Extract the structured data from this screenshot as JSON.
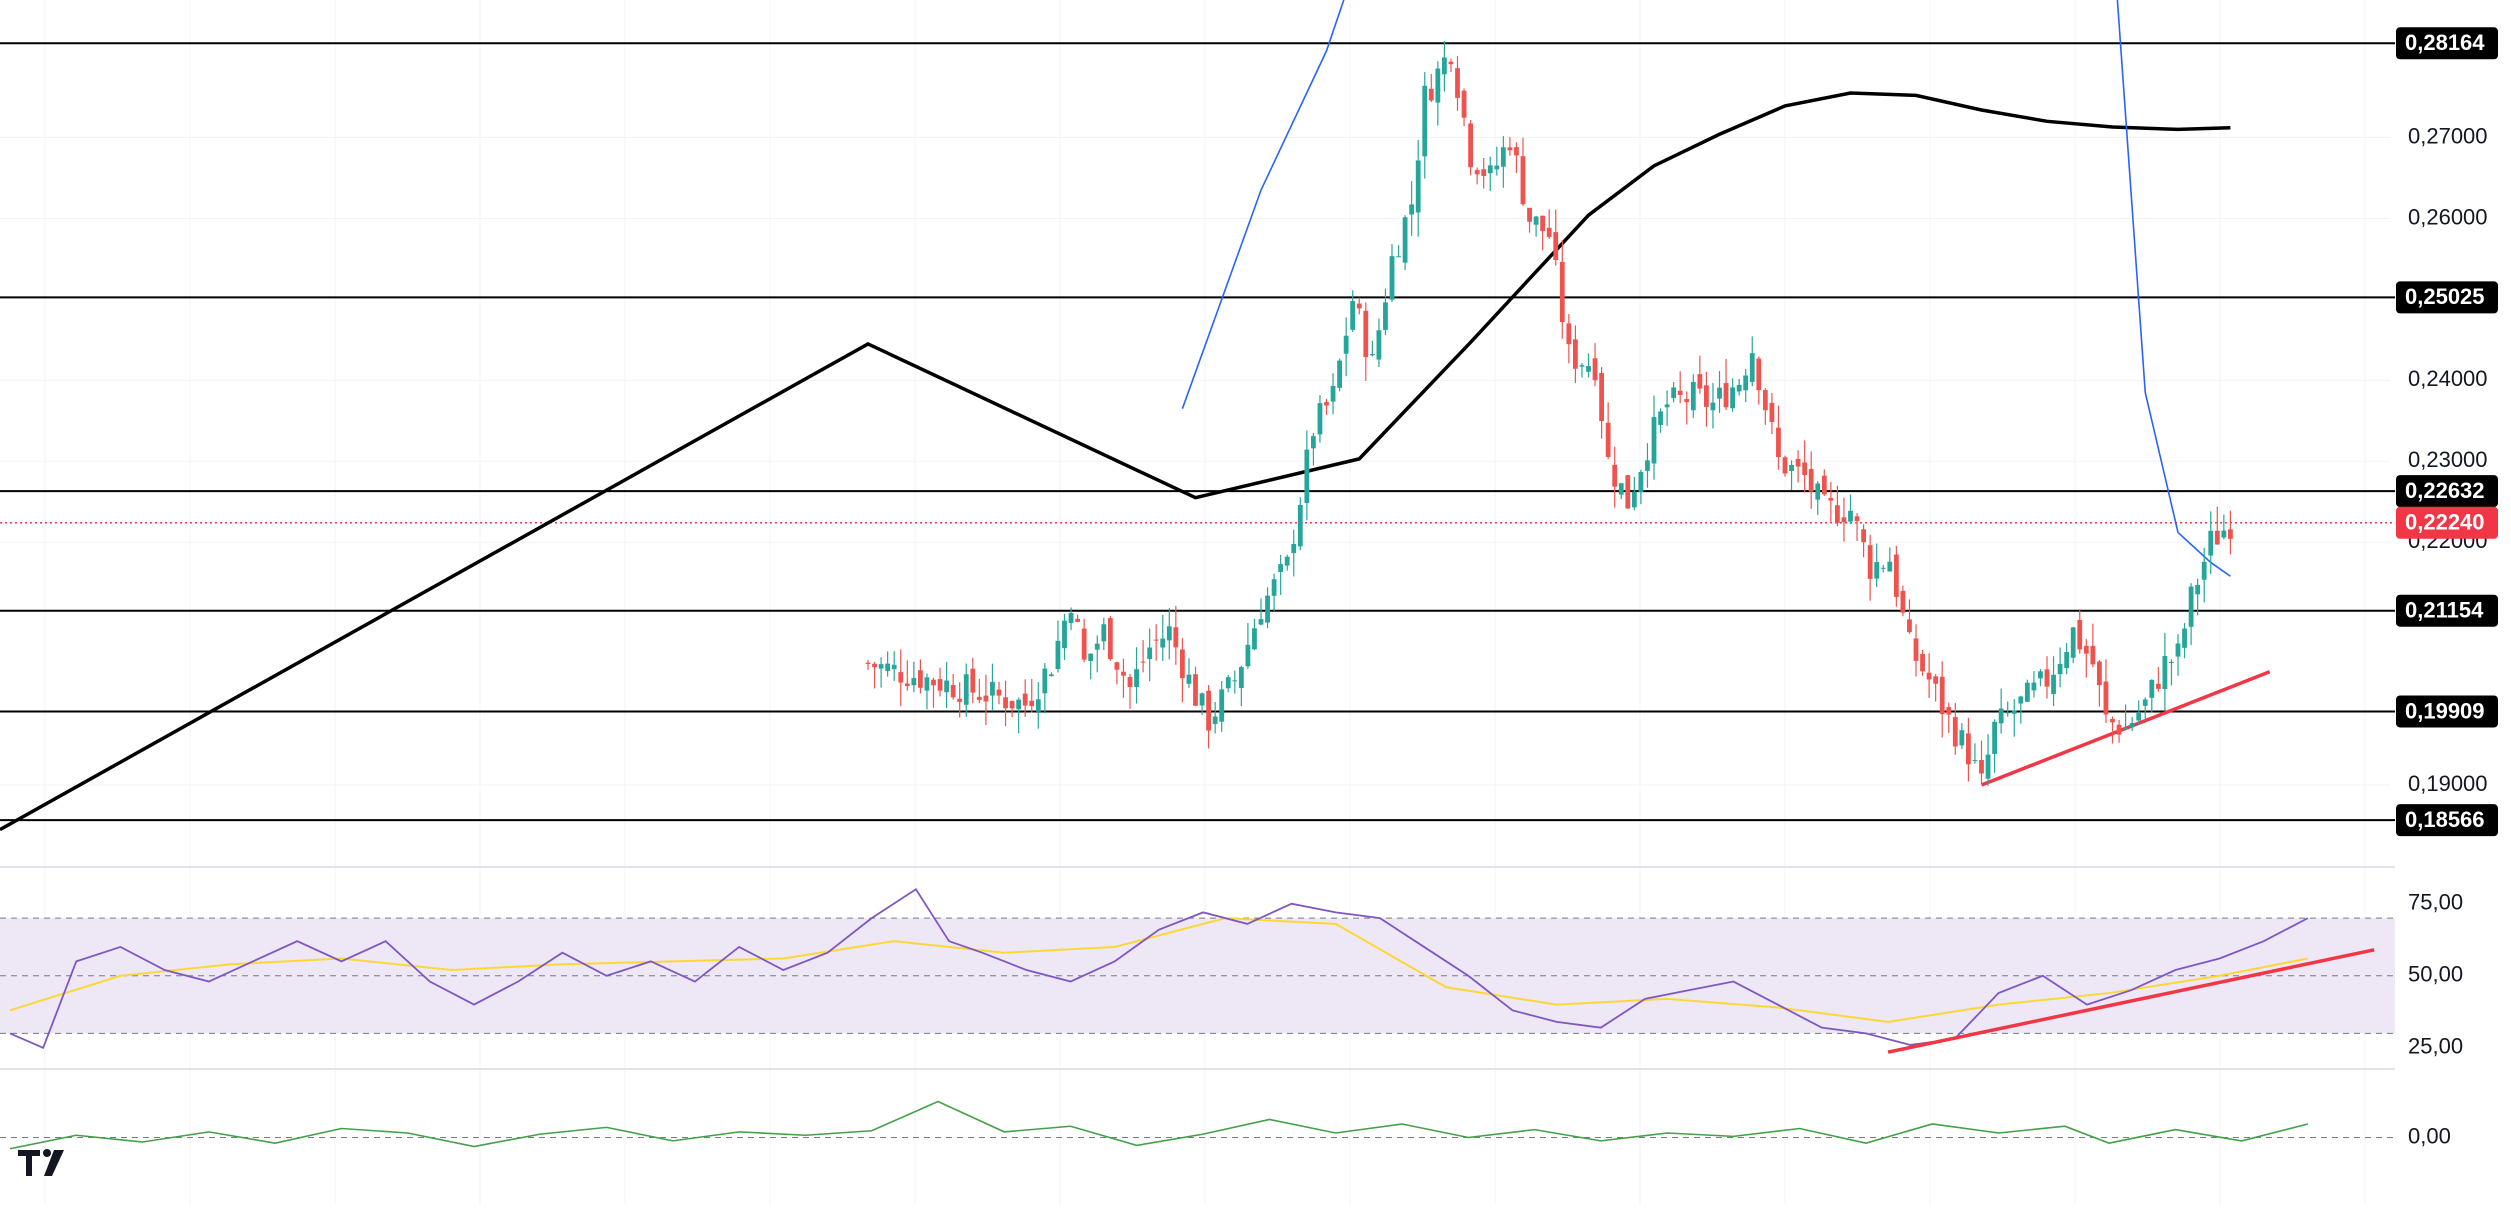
{
  "colors": {
    "up": "#26a69a",
    "down": "#ef5350",
    "level_line": "#000000",
    "sma_fast": "#2962ff",
    "sma_slow": "#000000",
    "current_price": "#f23645",
    "trendline": "#f23645",
    "rsi_line": "#7e57c2",
    "rsi_ma": "#fdd835",
    "rsi_band": "#ede7f6",
    "osc_line": "#43a047",
    "grid": "#f0f3fa",
    "dashed": "#787b86"
  },
  "icons": {
    "logo": "tradingview-logo-icon"
  },
  "chart_data": [
    {
      "type": "candlestick",
      "name": "price",
      "ylim": [
        0.18,
        0.286
      ],
      "y_ticks": [
        {
          "value": 0.19,
          "label": "0,19000"
        },
        {
          "value": 0.22,
          "label": "0,22000"
        },
        {
          "value": 0.23,
          "label": "0,23000"
        },
        {
          "value": 0.24,
          "label": "0,24000"
        },
        {
          "value": 0.26,
          "label": "0,26000"
        },
        {
          "value": 0.27,
          "label": "0,27000"
        }
      ],
      "key_levels": [
        {
          "value": 0.28164,
          "label": "0,28164"
        },
        {
          "value": 0.25025,
          "label": "0,25025"
        },
        {
          "value": 0.22632,
          "label": "0,22632"
        },
        {
          "value": 0.21154,
          "label": "0,21154"
        },
        {
          "value": 0.19909,
          "label": "0,19909"
        },
        {
          "value": 0.18566,
          "label": "0,18566"
        }
      ],
      "current_price": {
        "value": 0.2224,
        "label": "0,22240"
      },
      "close_path": [
        [
          0,
          0.205
        ],
        [
          24,
          0.2
        ],
        [
          28,
          0.205
        ],
        [
          31,
          0.213
        ],
        [
          33,
          0.205
        ],
        [
          36,
          0.209
        ],
        [
          40,
          0.202
        ],
        [
          43,
          0.207
        ],
        [
          46,
          0.209
        ],
        [
          50,
          0.201
        ],
        [
          52,
          0.198
        ],
        [
          56,
          0.203
        ],
        [
          60,
          0.212
        ],
        [
          64,
          0.217
        ],
        [
          68,
          0.234
        ],
        [
          71,
          0.238
        ],
        [
          74,
          0.25
        ],
        [
          77,
          0.242
        ],
        [
          80,
          0.255
        ],
        [
          83,
          0.262
        ],
        [
          85,
          0.275
        ],
        [
          89,
          0.281
        ],
        [
          92,
          0.268
        ],
        [
          95,
          0.265
        ],
        [
          98,
          0.27
        ],
        [
          101,
          0.26
        ],
        [
          104,
          0.258
        ],
        [
          107,
          0.243
        ],
        [
          111,
          0.242
        ],
        [
          113,
          0.23
        ],
        [
          116,
          0.225
        ],
        [
          119,
          0.232
        ],
        [
          122,
          0.237
        ],
        [
          126,
          0.238
        ],
        [
          129,
          0.237
        ],
        [
          133,
          0.24
        ],
        [
          135,
          0.244
        ],
        [
          139,
          0.23
        ],
        [
          143,
          0.228
        ],
        [
          146,
          0.224
        ],
        [
          150,
          0.224
        ],
        [
          153,
          0.217
        ],
        [
          156,
          0.218
        ],
        [
          159,
          0.207
        ],
        [
          162,
          0.203
        ],
        [
          165,
          0.198
        ],
        [
          168,
          0.194
        ],
        [
          170,
          0.19
        ],
        [
          172,
          0.197
        ],
        [
          176,
          0.2
        ],
        [
          180,
          0.203
        ],
        [
          184,
          0.209
        ],
        [
          187,
          0.205
        ],
        [
          189,
          0.198
        ],
        [
          192,
          0.197
        ],
        [
          195,
          0.2
        ],
        [
          198,
          0.205
        ],
        [
          200,
          0.206
        ],
        [
          202,
          0.213
        ],
        [
          205,
          0.22
        ],
        [
          208,
          0.2224
        ]
      ],
      "sma_slow": [
        [
          0,
          0.2445
        ],
        [
          50,
          0.2255
        ],
        [
          75,
          0.2303
        ],
        [
          92,
          0.2447
        ],
        [
          110,
          0.2604
        ],
        [
          120,
          0.2665
        ],
        [
          130,
          0.2704
        ],
        [
          140,
          0.2739
        ],
        [
          150,
          0.2755
        ],
        [
          160,
          0.2752
        ],
        [
          170,
          0.2734
        ],
        [
          180,
          0.272
        ],
        [
          190,
          0.2713
        ],
        [
          200,
          0.271
        ],
        [
          208,
          0.2712
        ]
      ],
      "sma_fast": [
        [
          48,
          0.2365
        ],
        [
          60,
          0.2635
        ],
        [
          70,
          0.2807
        ],
        [
          78,
          0.2998
        ],
        [
          84,
          0.3095
        ],
        [
          90,
          0.3199
        ],
        [
          100,
          0.3355
        ],
        [
          110,
          0.3452
        ],
        [
          120,
          0.3502
        ],
        [
          130,
          0.3522
        ],
        [
          140,
          0.3542
        ],
        [
          150,
          0.3555
        ],
        [
          160,
          0.3565
        ],
        [
          170,
          0.3563
        ],
        [
          180,
          0.3549
        ],
        [
          185,
          0.3502
        ],
        [
          190,
          0.2955
        ],
        [
          195,
          0.2385
        ],
        [
          200,
          0.2212
        ],
        [
          205,
          0.2175
        ],
        [
          208,
          0.2158
        ]
      ],
      "trendline": [
        [
          170,
          0.19
        ],
        [
          214,
          0.204
        ]
      ]
    },
    {
      "type": "line",
      "name": "rsi",
      "ylim": [
        18,
        86
      ],
      "y_ticks": [
        {
          "value": 75,
          "label": "75,00"
        },
        {
          "value": 50,
          "label": "50,00"
        },
        {
          "value": 25,
          "label": "25,00"
        }
      ],
      "band": [
        30,
        70
      ],
      "midline": 50,
      "rsi": [
        [
          0,
          30
        ],
        [
          3,
          25
        ],
        [
          6,
          55
        ],
        [
          10,
          60
        ],
        [
          14,
          52
        ],
        [
          18,
          48
        ],
        [
          22,
          55
        ],
        [
          26,
          62
        ],
        [
          30,
          55
        ],
        [
          34,
          62
        ],
        [
          38,
          48
        ],
        [
          42,
          40
        ],
        [
          46,
          48
        ],
        [
          50,
          58
        ],
        [
          54,
          50
        ],
        [
          58,
          55
        ],
        [
          62,
          48
        ],
        [
          66,
          60
        ],
        [
          70,
          52
        ],
        [
          74,
          58
        ],
        [
          78,
          70
        ],
        [
          82,
          80
        ],
        [
          85,
          62
        ],
        [
          88,
          58
        ],
        [
          92,
          52
        ],
        [
          96,
          48
        ],
        [
          100,
          55
        ],
        [
          104,
          66
        ],
        [
          108,
          72
        ],
        [
          112,
          68
        ],
        [
          116,
          75
        ],
        [
          120,
          72
        ],
        [
          124,
          70
        ],
        [
          128,
          60
        ],
        [
          132,
          50
        ],
        [
          136,
          38
        ],
        [
          140,
          34
        ],
        [
          144,
          32
        ],
        [
          148,
          42
        ],
        [
          152,
          45
        ],
        [
          156,
          48
        ],
        [
          160,
          40
        ],
        [
          164,
          32
        ],
        [
          168,
          30
        ],
        [
          172,
          26
        ],
        [
          176,
          28
        ],
        [
          180,
          44
        ],
        [
          184,
          50
        ],
        [
          188,
          40
        ],
        [
          192,
          45
        ],
        [
          196,
          52
        ],
        [
          200,
          56
        ],
        [
          204,
          62
        ],
        [
          208,
          70
        ]
      ],
      "rsi_ma": [
        [
          0,
          38
        ],
        [
          10,
          50
        ],
        [
          20,
          54
        ],
        [
          30,
          56
        ],
        [
          40,
          52
        ],
        [
          50,
          54
        ],
        [
          60,
          55
        ],
        [
          70,
          56
        ],
        [
          80,
          62
        ],
        [
          90,
          58
        ],
        [
          100,
          60
        ],
        [
          110,
          70
        ],
        [
          120,
          68
        ],
        [
          130,
          46
        ],
        [
          140,
          40
        ],
        [
          150,
          42
        ],
        [
          160,
          39
        ],
        [
          170,
          34
        ],
        [
          180,
          40
        ],
        [
          190,
          44
        ],
        [
          200,
          50
        ],
        [
          208,
          56
        ]
      ],
      "trendline": [
        [
          170,
          23.5
        ],
        [
          214,
          59
        ]
      ]
    },
    {
      "type": "line",
      "name": "oscillator",
      "ylim": [
        -6,
        6
      ],
      "y_ticks": [
        {
          "value": 0,
          "label": "0,00"
        }
      ],
      "zero_line": 0,
      "values": [
        [
          0,
          -1
        ],
        [
          6,
          0.2
        ],
        [
          12,
          -0.4
        ],
        [
          18,
          0.5
        ],
        [
          24,
          -0.5
        ],
        [
          30,
          0.8
        ],
        [
          36,
          0.4
        ],
        [
          42,
          -0.8
        ],
        [
          48,
          0.3
        ],
        [
          54,
          0.9
        ],
        [
          60,
          -0.3
        ],
        [
          66,
          0.5
        ],
        [
          72,
          0.2
        ],
        [
          78,
          0.6
        ],
        [
          84,
          3.2
        ],
        [
          90,
          0.5
        ],
        [
          96,
          1.0
        ],
        [
          102,
          -0.7
        ],
        [
          108,
          0.3
        ],
        [
          114,
          1.6
        ],
        [
          120,
          0.4
        ],
        [
          126,
          1.2
        ],
        [
          132,
          0.0
        ],
        [
          138,
          0.7
        ],
        [
          144,
          -0.3
        ],
        [
          150,
          0.4
        ],
        [
          156,
          0.1
        ],
        [
          162,
          0.8
        ],
        [
          168,
          -0.5
        ],
        [
          174,
          1.2
        ],
        [
          180,
          0.4
        ],
        [
          186,
          1.0
        ],
        [
          190,
          -0.5
        ],
        [
          196,
          0.7
        ],
        [
          202,
          -0.3
        ],
        [
          208,
          1.2
        ]
      ]
    }
  ]
}
